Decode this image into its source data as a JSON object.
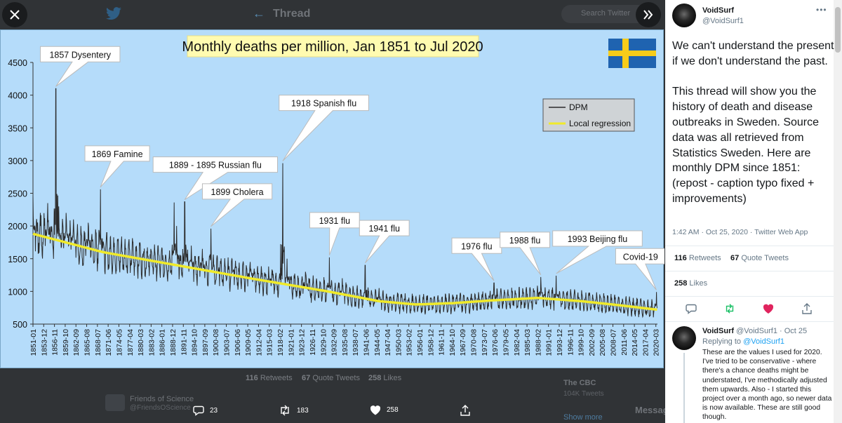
{
  "backdrop": {
    "thread_title": "Thread",
    "search_placeholder": "Search Twitter",
    "retweets_count": "116",
    "retweets_label": "Retweets",
    "quotes_count": "67",
    "quotes_label": "Quote Tweets",
    "likes_count": "258",
    "likes_label": "Likes",
    "fos_name": "Friends of Science",
    "fos_handle": "@FriendsOScience",
    "cbc_name": "The CBC",
    "cbc_sub": "104K Tweets",
    "show_more": "Show more",
    "messages": "Messages"
  },
  "actions": {
    "reply_count": "23",
    "retweet_count": "183",
    "like_count": "258"
  },
  "tweet": {
    "name": "VoidSurf",
    "handle": "@VoidSurf1",
    "more": "•••",
    "text": "We can't understand the present if we don't understand the past.\n\nThis thread will show you the history of death and disease outbreaks in Sweden. Source data was all retrieved from Statistics Sweden. Here are monthly DPM since 1851: (repost - caption typo fixed + improvements)",
    "meta": "1:42 AM · Oct 25, 2020 · Twitter Web App",
    "retweets": "116",
    "retweets_label": "Retweets",
    "quotes": "67",
    "quotes_label": "Quote Tweets",
    "likes": "258",
    "likes_label": "Likes"
  },
  "reply": {
    "name": "VoidSurf",
    "handle": "@VoidSurf1 · Oct 25",
    "replying_prefix": "Replying to",
    "replying_to": "@VoidSurf1",
    "text": "These are the values I used for 2020. I've tried to be conservative - where there's a chance deaths might be understated, I've methodically adjusted them upwards. Also - I started this project over a month ago, so newer data is now available. These are still good though."
  },
  "colors": {
    "chart_bg": "#b5dcfa",
    "dpm_line": "#2b2b2b",
    "regression_line": "#f0ea2a",
    "title_bg": "#fffbb0",
    "flag_blue": "#1f63b0",
    "flag_yellow": "#f7cc1a",
    "like_red": "#e0245e",
    "retweet_green": "#17bf63",
    "link_blue": "#1da1f2"
  },
  "chart_data": {
    "type": "line",
    "title": "Monthly deaths per million, Jan 1851 to Jul 2020",
    "ylim": [
      500,
      4500
    ],
    "yticks": [
      500,
      1000,
      1500,
      2000,
      2500,
      3000,
      3500,
      4000,
      4500
    ],
    "x_range_years": [
      1851.0,
      2020.6
    ],
    "xtick_labels": [
      "1851-01",
      "1853-12",
      "1856-11",
      "1859-10",
      "1862-09",
      "1865-08",
      "1868-07",
      "1871-06",
      "1874-05",
      "1877-04",
      "1880-03",
      "1883-02",
      "1886-01",
      "1888-12",
      "1891-11",
      "1894-10",
      "1897-09",
      "1900-08",
      "1903-07",
      "1906-06",
      "1909-05",
      "1912-04",
      "1915-03",
      "1918-02",
      "1921-01",
      "1923-12",
      "1926-11",
      "1929-10",
      "1932-09",
      "1935-08",
      "1938-07",
      "1941-06",
      "1944-05",
      "1947-04",
      "1950-03",
      "1953-02",
      "1956-01",
      "1958-12",
      "1961-11",
      "1964-10",
      "1967-09",
      "1970-08",
      "1973-07",
      "1976-06",
      "1979-05",
      "1982-04",
      "1985-03",
      "1988-02",
      "1991-01",
      "1993-12",
      "1996-11",
      "1999-10",
      "2002-09",
      "2005-08",
      "2008-07",
      "2011-06",
      "2014-05",
      "2017-04",
      "2020-03"
    ],
    "legend": [
      "DPM",
      "Local regression"
    ],
    "legend_position": "top-right",
    "grid": false,
    "series": [
      {
        "name": "DPM",
        "x": [
          1851,
          1853,
          1855,
          1857.2,
          1858,
          1860,
          1862,
          1864,
          1866,
          1868,
          1869.3,
          1871,
          1874,
          1877,
          1880,
          1883,
          1886,
          1889.3,
          1890,
          1892.2,
          1894,
          1897,
          1899.3,
          1901,
          1905,
          1910,
          1915,
          1918.8,
          1920,
          1925,
          1931.5,
          1935,
          1941.2,
          1945,
          1950,
          1955,
          1960,
          1965,
          1970,
          1976.2,
          1980,
          1985,
          1988.9,
          1993.1,
          1997,
          2002,
          2007,
          2012,
          2017,
          2020.3
        ],
        "y": [
          2450,
          2200,
          2350,
          4100,
          2300,
          2200,
          2100,
          2000,
          2050,
          1900,
          2560,
          1900,
          1800,
          1750,
          1700,
          1650,
          1650,
          2360,
          2000,
          2370,
          1700,
          1650,
          1960,
          1550,
          1500,
          1450,
          1380,
          2960,
          1500,
          1300,
          1520,
          1200,
          1400,
          1050,
          980,
          920,
          920,
          950,
          950,
          1130,
          1030,
          1050,
          1220,
          1240,
          1020,
          980,
          940,
          900,
          850,
          990
        ]
      },
      {
        "name": "Local regression",
        "x": [
          1851,
          1870,
          1890,
          1910,
          1930,
          1945,
          1955,
          1965,
          1975,
          1988,
          2000,
          2010,
          2020.6
        ],
        "y": [
          1880,
          1600,
          1400,
          1200,
          1010,
          850,
          800,
          820,
          860,
          900,
          850,
          790,
          720
        ]
      }
    ],
    "annotations": [
      {
        "text": "1857 Dysentery",
        "x": 1857.2,
        "y": 4100
      },
      {
        "text": "1869 Famine",
        "x": 1869.3,
        "y": 2560
      },
      {
        "text": "1889 - 1895 Russian flu",
        "x": 1892.2,
        "y": 2370
      },
      {
        "text": "1899 Cholera",
        "x": 1899.3,
        "y": 1960
      },
      {
        "text": "1918 Spanish flu",
        "x": 1918.8,
        "y": 2960
      },
      {
        "text": "1931 flu",
        "x": 1931.5,
        "y": 1520
      },
      {
        "text": "1941 flu",
        "x": 1941.2,
        "y": 1400
      },
      {
        "text": "1976 flu",
        "x": 1976.2,
        "y": 1130
      },
      {
        "text": "1988 flu",
        "x": 1988.9,
        "y": 1220
      },
      {
        "text": "1993 Beijing flu",
        "x": 1993.1,
        "y": 1240
      },
      {
        "text": "Covid-19",
        "x": 2020.3,
        "y": 990
      }
    ]
  }
}
